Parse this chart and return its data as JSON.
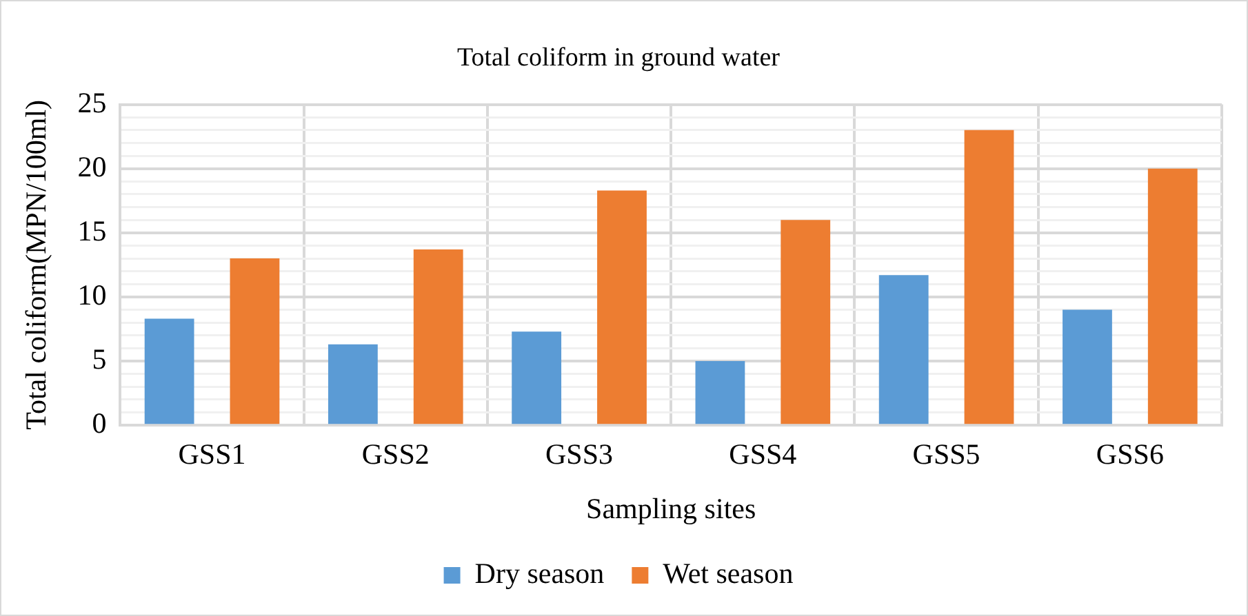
{
  "chart_data": {
    "type": "bar",
    "title": "Total coliform in ground water",
    "xlabel": "Sampling sites",
    "ylabel": "Total coliform(MPN/100ml)",
    "categories": [
      "GSS1",
      "GSS2",
      "GSS3",
      "GSS4",
      "GSS5",
      "GSS6"
    ],
    "series": [
      {
        "name": "Dry season",
        "color": "#5b9bd5",
        "values": [
          8.3,
          6.3,
          7.3,
          5.0,
          11.7,
          9.0
        ]
      },
      {
        "name": "Wet season",
        "color": "#ed7d31",
        "values": [
          13.0,
          13.7,
          18.3,
          16.0,
          23.0,
          20.0
        ]
      }
    ],
    "ylim": [
      0,
      25
    ],
    "yticks": [
      0,
      {
        "value": 1,
        "label": null
      },
      {
        "value": 2,
        "label": null
      },
      {
        "value": 3,
        "label": null
      },
      {
        "value": 4,
        "label": null
      },
      5,
      {
        "value": 6,
        "label": null
      },
      {
        "value": 7,
        "label": null
      },
      {
        "value": 8,
        "label": null
      },
      {
        "value": 9,
        "label": null
      },
      10,
      {
        "value": 11,
        "label": null
      },
      {
        "value": 12,
        "label": null
      },
      {
        "value": 13,
        "label": null
      },
      {
        "value": 14,
        "label": null
      },
      15,
      {
        "value": 16,
        "label": null
      },
      {
        "value": 17,
        "label": null
      },
      {
        "value": 18,
        "label": null
      },
      {
        "value": 19,
        "label": null
      },
      20,
      {
        "value": 21,
        "label": null
      },
      {
        "value": 22,
        "label": null
      },
      {
        "value": 23,
        "label": null
      },
      {
        "value": 24,
        "label": null
      },
      25
    ],
    "grid": true,
    "legend": "bottom"
  }
}
